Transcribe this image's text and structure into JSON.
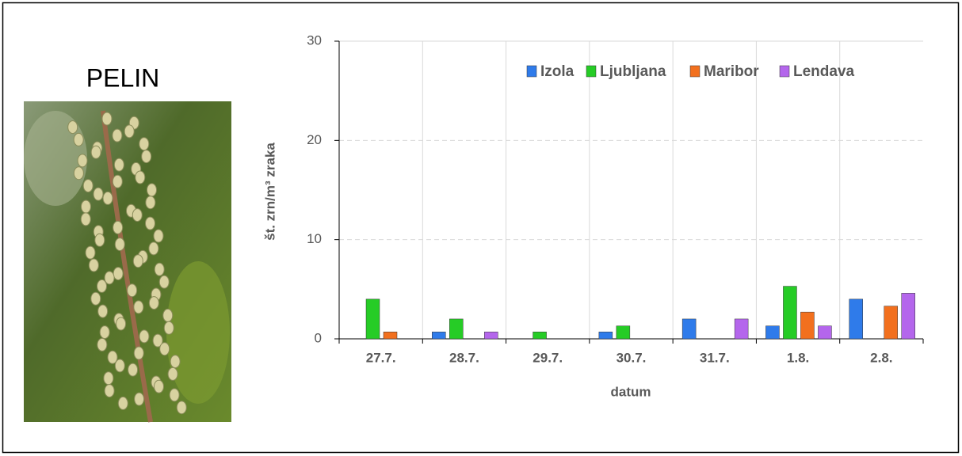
{
  "chart_data": {
    "type": "bar",
    "title": "PELIN",
    "x_label": "datum",
    "y_label": "št. zrn/m³ zraka",
    "categories": [
      "27.7.",
      "28.7.",
      "29.7.",
      "30.7.",
      "31.7.",
      "1.8.",
      "2.8."
    ],
    "series": [
      {
        "name": "Izola",
        "color": "#2f7bea",
        "values": [
          0,
          0.7,
          0,
          0.7,
          2.0,
          1.3,
          4.0
        ]
      },
      {
        "name": "Ljubljana",
        "color": "#26cc26",
        "values": [
          4.0,
          2.0,
          0.7,
          1.3,
          0,
          5.3,
          0
        ]
      },
      {
        "name": "Maribor",
        "color": "#f2701e",
        "values": [
          0.7,
          0,
          0,
          0,
          0,
          2.7,
          3.3
        ]
      },
      {
        "name": "Lendava",
        "color": "#b466ec",
        "values": [
          0,
          0.7,
          0,
          0,
          2.0,
          1.3,
          4.6
        ]
      }
    ],
    "ylim": [
      0,
      30
    ],
    "yticks": [
      0,
      10,
      20,
      30
    ],
    "grid": true
  }
}
